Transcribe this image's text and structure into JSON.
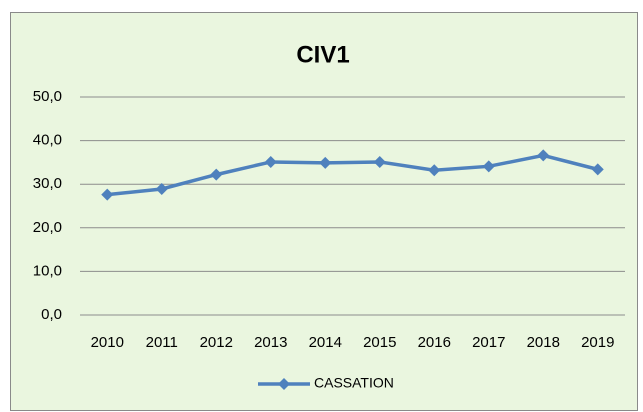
{
  "chart_data": {
    "type": "line",
    "title": "CIV1",
    "categories": [
      "2010",
      "2011",
      "2012",
      "2013",
      "2014",
      "2015",
      "2016",
      "2017",
      "2018",
      "2019"
    ],
    "series": [
      {
        "name": "CASSATION",
        "color": "#4f81bd",
        "values": [
          27.6,
          28.9,
          32.2,
          35.1,
          34.9,
          35.1,
          33.2,
          34.1,
          36.6,
          33.4
        ]
      }
    ],
    "ylim": [
      0,
      50
    ],
    "yticks": [
      {
        "value": 0,
        "label": "0,0"
      },
      {
        "value": 10,
        "label": "10,0"
      },
      {
        "value": 20,
        "label": "20,0"
      },
      {
        "value": 30,
        "label": "30,0"
      },
      {
        "value": 40,
        "label": "40,0"
      },
      {
        "value": 50,
        "label": "50,0"
      }
    ],
    "grid": true,
    "legend": "bottom"
  }
}
